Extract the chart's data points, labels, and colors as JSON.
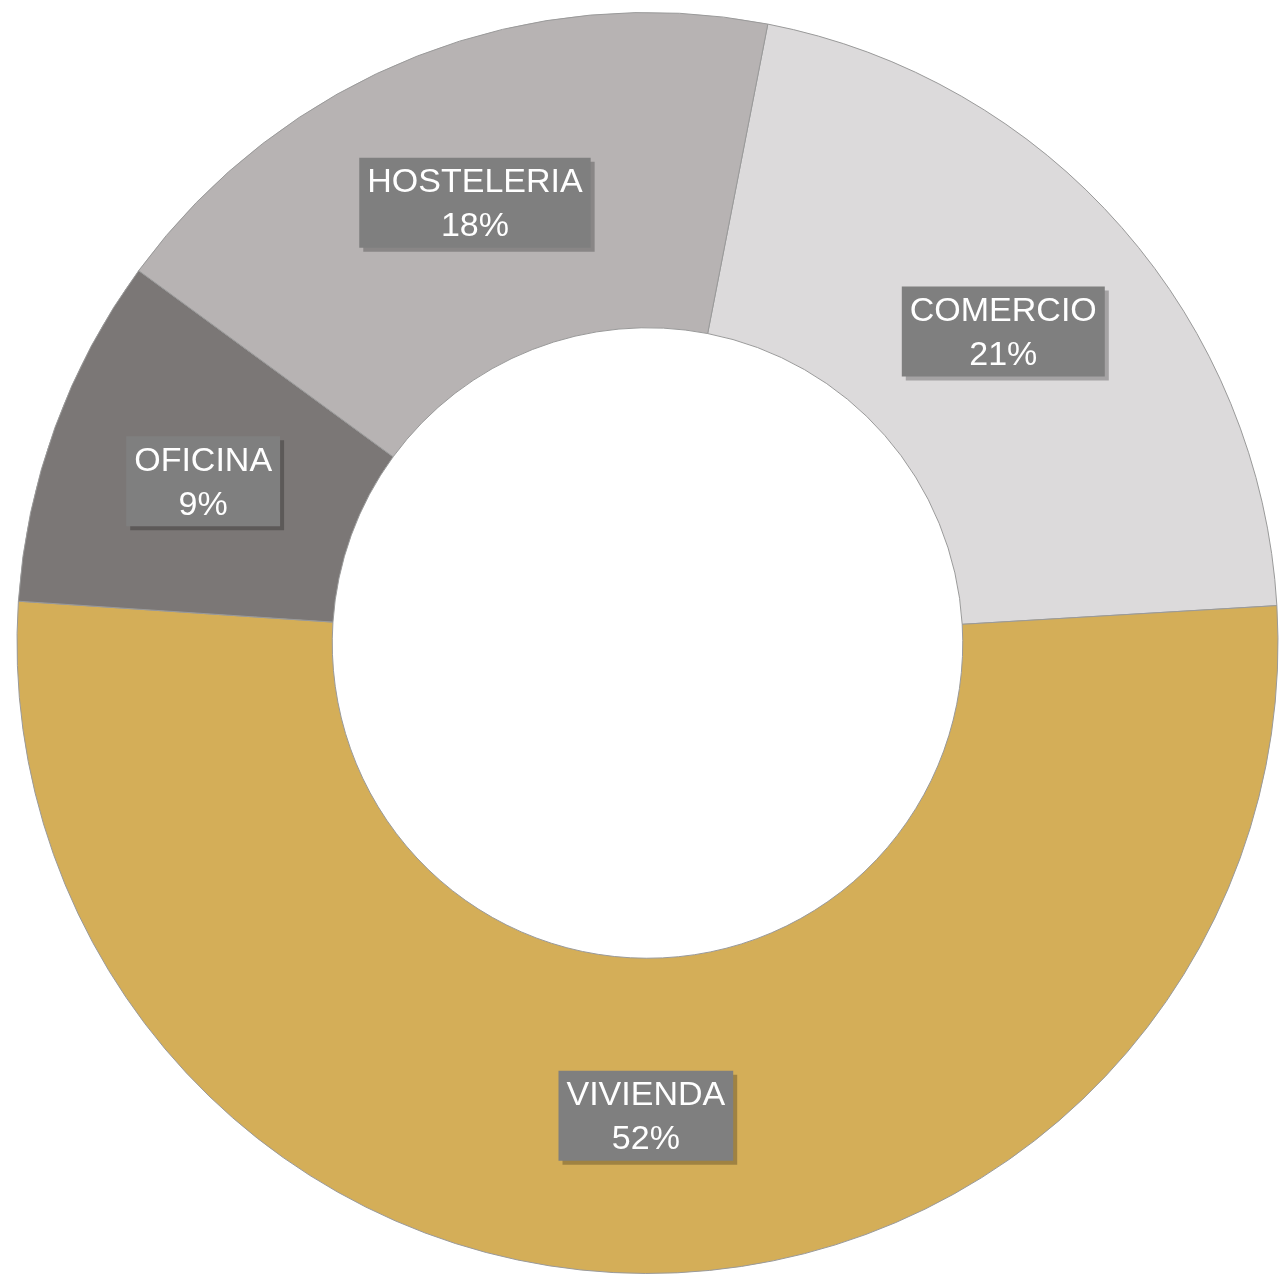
{
  "chart_data": {
    "type": "donut",
    "categories": [
      "COMERCIO",
      "VIVIENDA",
      "OFICINA",
      "HOSTELERIA"
    ],
    "values": [
      21,
      52,
      9,
      18
    ],
    "colors": [
      "#dcdadb",
      "#d4ae58",
      "#7b7776",
      "#b7b3b3"
    ],
    "value_labels": [
      "21%",
      "52%",
      "9%",
      "18%"
    ],
    "legend": false
  }
}
